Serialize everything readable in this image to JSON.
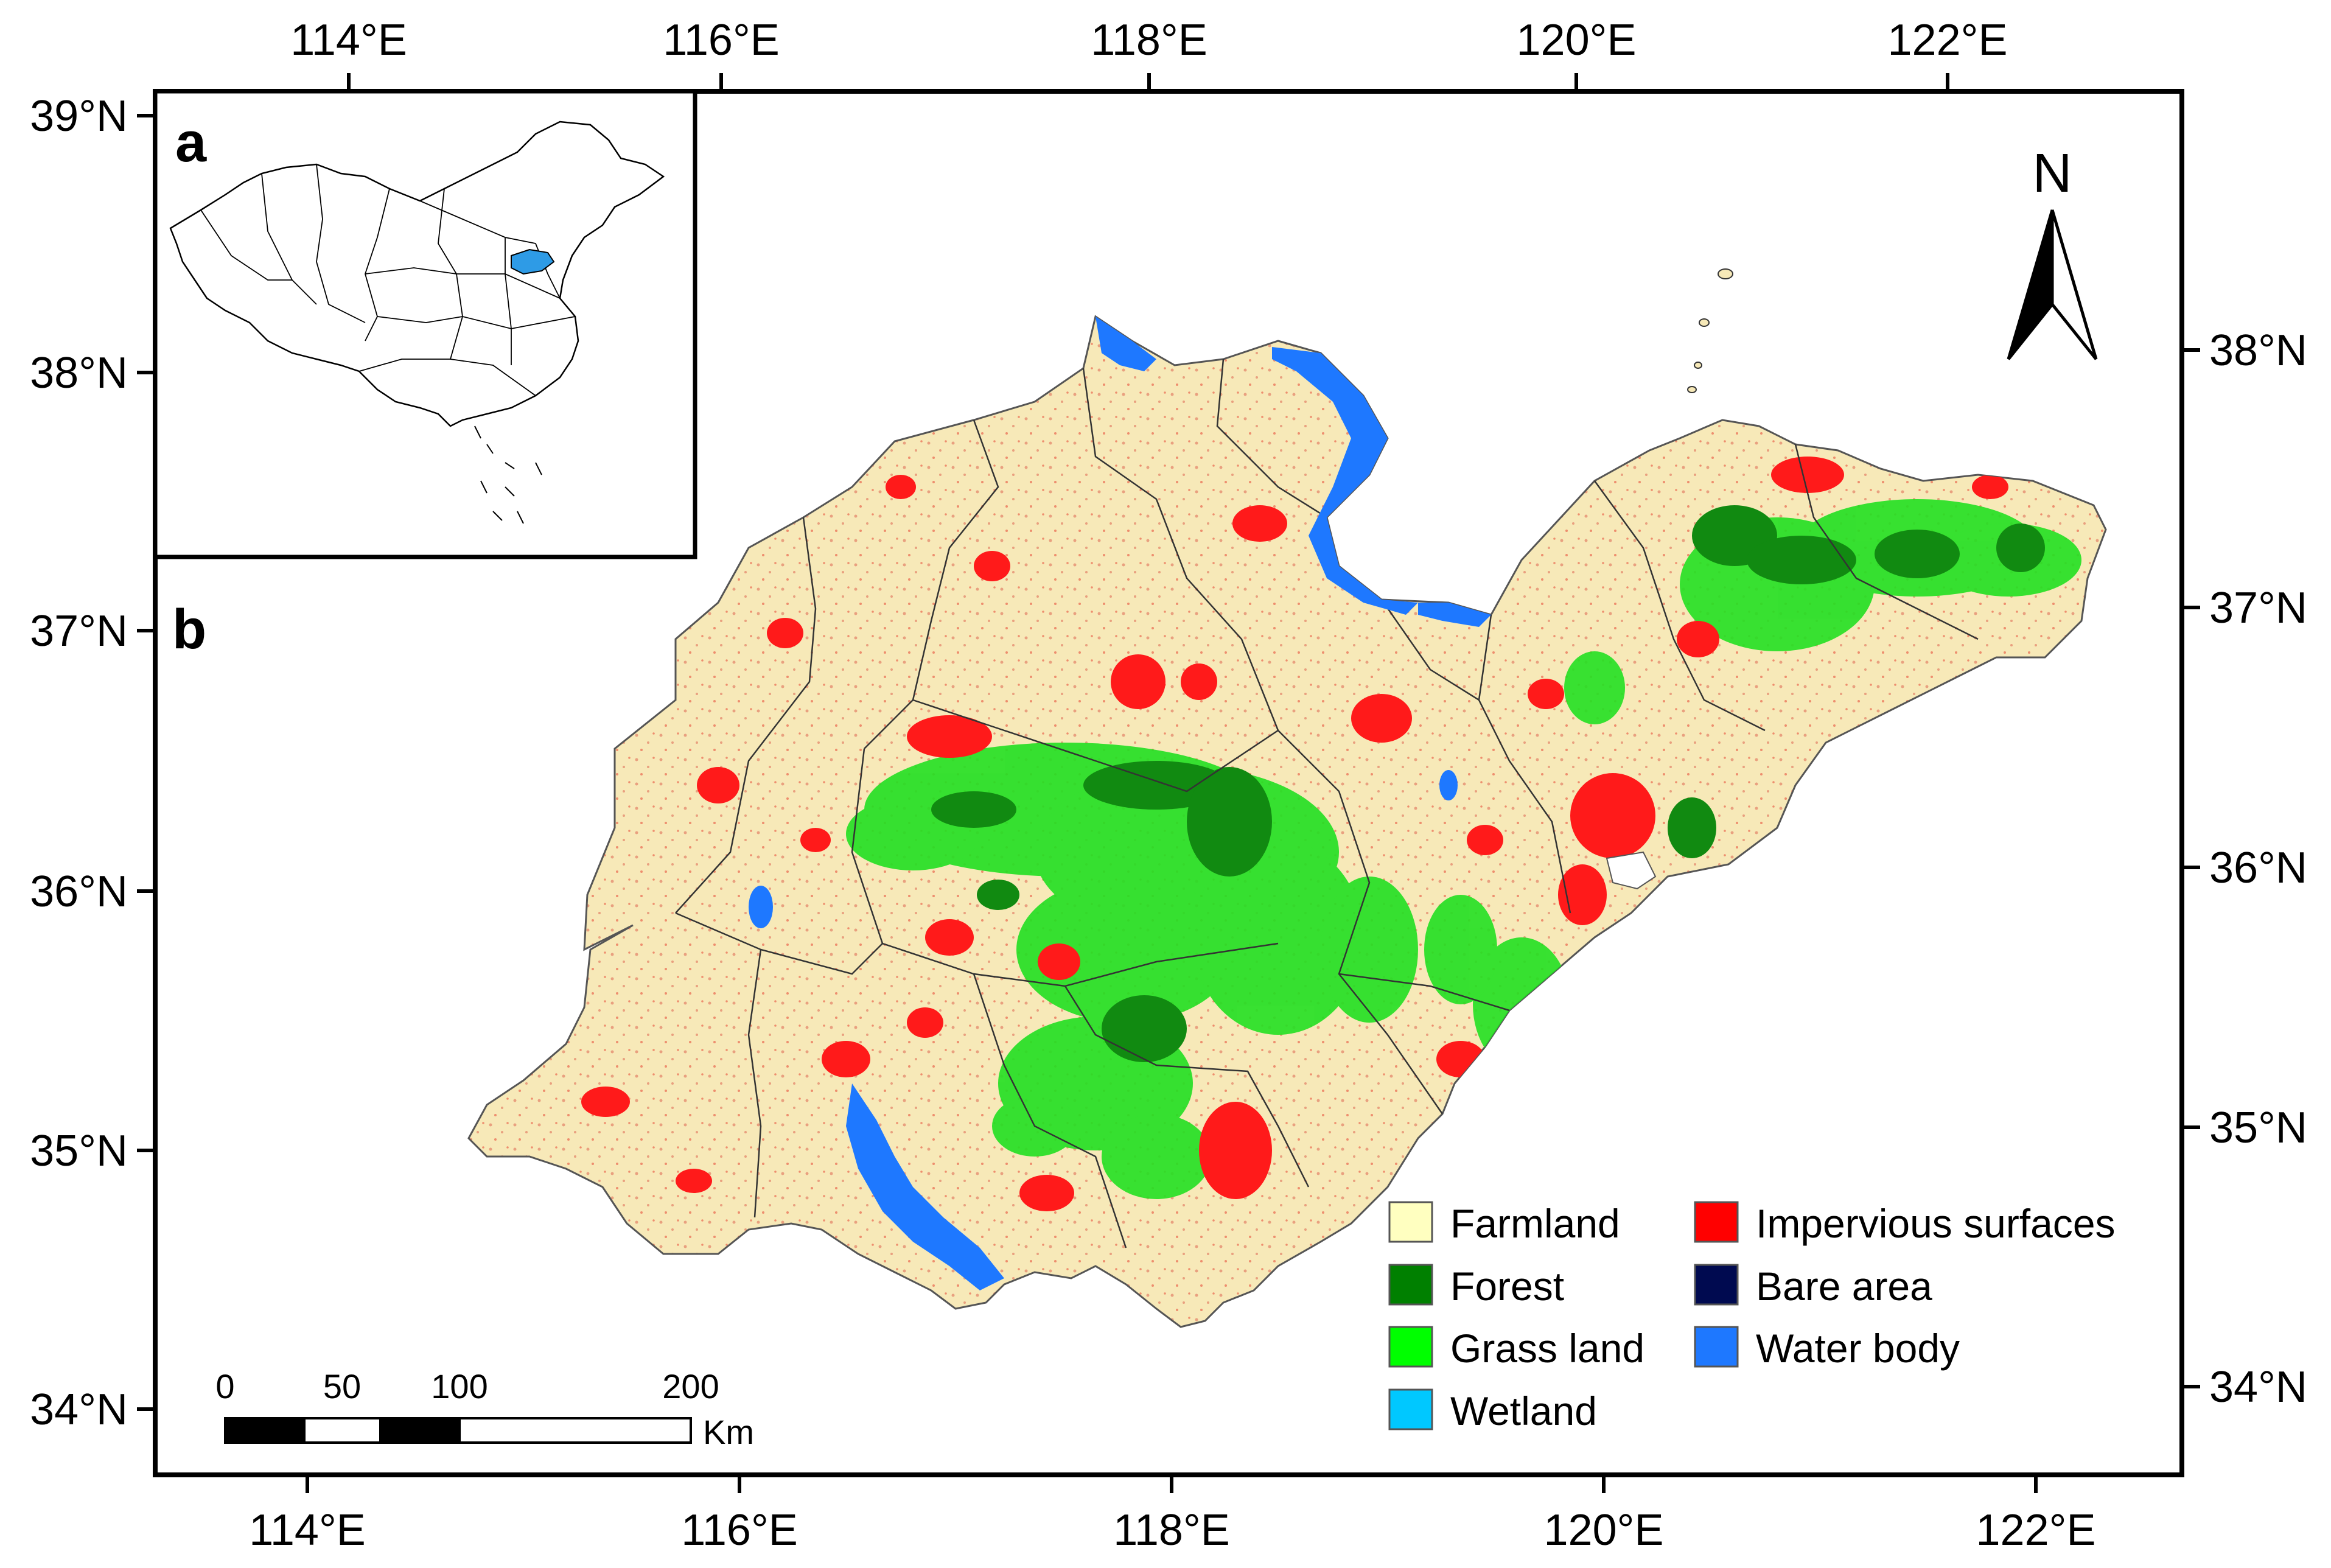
{
  "panels": {
    "inset_label": "a",
    "main_label": "b"
  },
  "axes": {
    "top_lon_ticks": [
      "114°E",
      "116°E",
      "118°E",
      "120°E",
      "122°E"
    ],
    "bottom_lon_ticks": [
      "114°E",
      "116°E",
      "118°E",
      "120°E",
      "122°E"
    ],
    "left_lat_ticks": [
      "39°N",
      "38°N",
      "37°N",
      "36°N",
      "35°N",
      "34°N"
    ],
    "right_lat_ticks": [
      "38°N",
      "37°N",
      "36°N",
      "35°N",
      "34°N"
    ]
  },
  "north_arrow": {
    "label": "N",
    "icon": "north-arrow-icon"
  },
  "scale_bar": {
    "ticks": [
      "0",
      "50",
      "100",
      "200"
    ],
    "unit": "Km"
  },
  "legend": {
    "items": [
      {
        "label": "Farmland",
        "color": "#FFFFC0"
      },
      {
        "label": "Forest",
        "color": "#008000"
      },
      {
        "label": "Grass land",
        "color": "#00FF00"
      },
      {
        "label": "Wetland",
        "color": "#00C8FF"
      },
      {
        "label": "Impervious surfaces",
        "color": "#FF0000"
      },
      {
        "label": "Bare area",
        "color": "#000A50"
      },
      {
        "label": "Water body",
        "color": "#1E78FF"
      }
    ]
  },
  "colors": {
    "farmland_fill": "#F7E9B8",
    "inset_highlight": "#2E9BE6"
  }
}
